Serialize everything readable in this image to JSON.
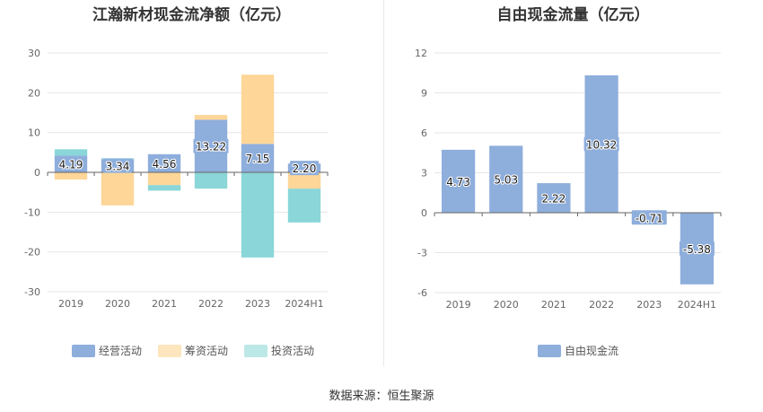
{
  "source": "数据来源：恒生聚源",
  "chart_data": [
    {
      "type": "bar",
      "stacked": true,
      "title": "江瀚新材现金流净额（亿元）",
      "categories": [
        "2019",
        "2020",
        "2021",
        "2022",
        "2023",
        "2024H1"
      ],
      "ylim": [
        -30,
        30
      ],
      "yticks": [
        30,
        20,
        10,
        0,
        -10,
        -20,
        -30
      ],
      "grid": true,
      "legend_position": "bottom",
      "series": [
        {
          "name": "经营活动",
          "color": "#8eaedc",
          "values": [
            4.19,
            3.34,
            4.56,
            13.22,
            7.15,
            2.2
          ],
          "labels": [
            "4.19",
            "3.34",
            "4.56",
            "13.22",
            "7.15",
            "2.20"
          ]
        },
        {
          "name": "筹资活动",
          "color": "#fdd698",
          "values": [
            -1.8,
            -8.3,
            -3.2,
            1.2,
            17.4,
            -4.1
          ]
        },
        {
          "name": "投资活动",
          "color": "#8ad6d8",
          "values": [
            1.6,
            0.2,
            -1.4,
            -4.1,
            -21.4,
            -8.5
          ]
        }
      ],
      "legend_colors": [
        "#8eaedc",
        "#fde5bd",
        "#bde8e8"
      ]
    },
    {
      "type": "bar",
      "title": "自由现金流量（亿元）",
      "categories": [
        "2019",
        "2020",
        "2021",
        "2022",
        "2023",
        "2024H1"
      ],
      "ylim": [
        -6,
        12
      ],
      "yticks": [
        12,
        9,
        6,
        3,
        0,
        -3,
        -6
      ],
      "grid": true,
      "legend_position": "bottom",
      "series": [
        {
          "name": "自由现金流",
          "color": "#8eaedc",
          "values": [
            4.73,
            5.03,
            2.22,
            10.32,
            -0.71,
            -5.38
          ],
          "labels": [
            "4.73",
            "5.03",
            "2.22",
            "10.32",
            "-0.71",
            "-5.38"
          ]
        }
      ]
    }
  ]
}
